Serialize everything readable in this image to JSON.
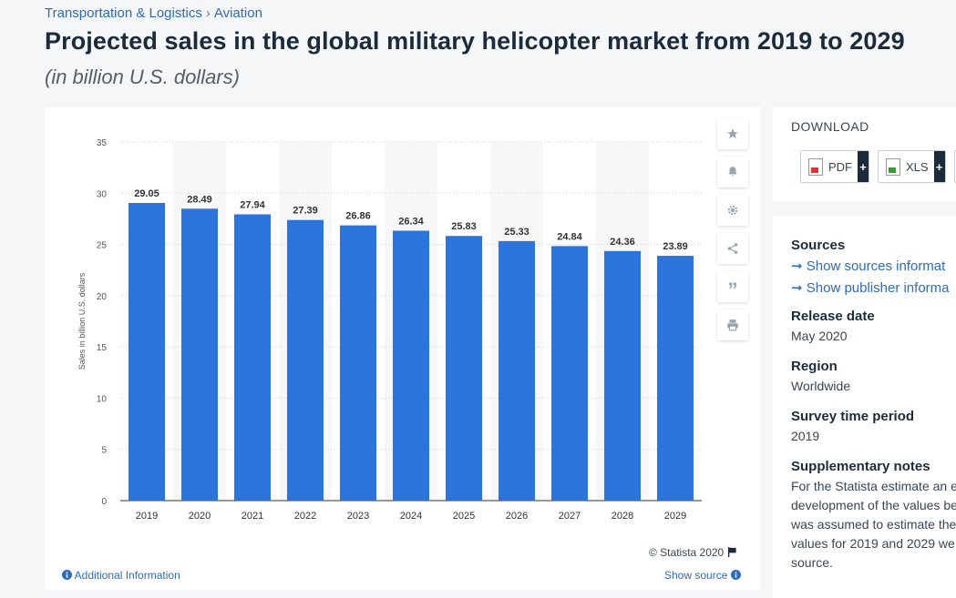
{
  "breadcrumb": {
    "category": "Transportation & Logistics",
    "separator": "›",
    "subcategory": "Aviation"
  },
  "page": {
    "title": "Projected sales in the global military helicopter market from 2019 to 2029",
    "subtitle": "(in billion U.S. dollars)"
  },
  "chart_data": {
    "type": "bar",
    "title": "Projected sales in the global military helicopter market from 2019 to 2029",
    "xlabel": "",
    "ylabel": "Sales in billion U.S. dollars",
    "categories": [
      "2019",
      "2020",
      "2021",
      "2022",
      "2023",
      "2024",
      "2025",
      "2026",
      "2027",
      "2028",
      "2029"
    ],
    "values": [
      29.05,
      28.49,
      27.94,
      27.39,
      26.86,
      26.34,
      25.83,
      25.33,
      24.84,
      24.36,
      23.89
    ],
    "value_labels": [
      "29.05",
      "28.49",
      "27.94",
      "27.39",
      "26.86",
      "26.34",
      "25.83",
      "25.33",
      "24.84",
      "24.36",
      "23.89"
    ],
    "yticks": [
      "0",
      "5",
      "10",
      "15",
      "20",
      "25",
      "30",
      "35"
    ],
    "ylim": [
      0,
      35
    ],
    "grid": true,
    "bar_color": "#2a74db"
  },
  "toolbar": {
    "favorite_icon": "star-icon",
    "alert_icon": "bell-icon",
    "settings_icon": "gear-icon",
    "share_icon": "share-icon",
    "cite_icon": "quote-icon",
    "print_icon": "printer-icon",
    "cite_glyph": "”"
  },
  "footer": {
    "copyright": "© Statista 2020",
    "additional_info": "Additional Information",
    "show_source": "Show source"
  },
  "download": {
    "title": "DOWNLOAD",
    "pdf_label": "PDF",
    "xls_label": "XLS",
    "plus": "+"
  },
  "info": {
    "sources_title": "Sources",
    "show_sources": "Show sources informat",
    "show_publisher": "Show publisher informa",
    "release_title": "Release date",
    "release_value": "May 2020",
    "region_title": "Region",
    "region_value": "Worldwide",
    "survey_title": "Survey time period",
    "survey_value": "2019",
    "notes_title": "Supplementary notes",
    "notes_lines": [
      "For the Statista estimate an e",
      "development of the values be",
      "was assumed to estimate the",
      "values for 2019 and 2029 we",
      "source."
    ]
  }
}
